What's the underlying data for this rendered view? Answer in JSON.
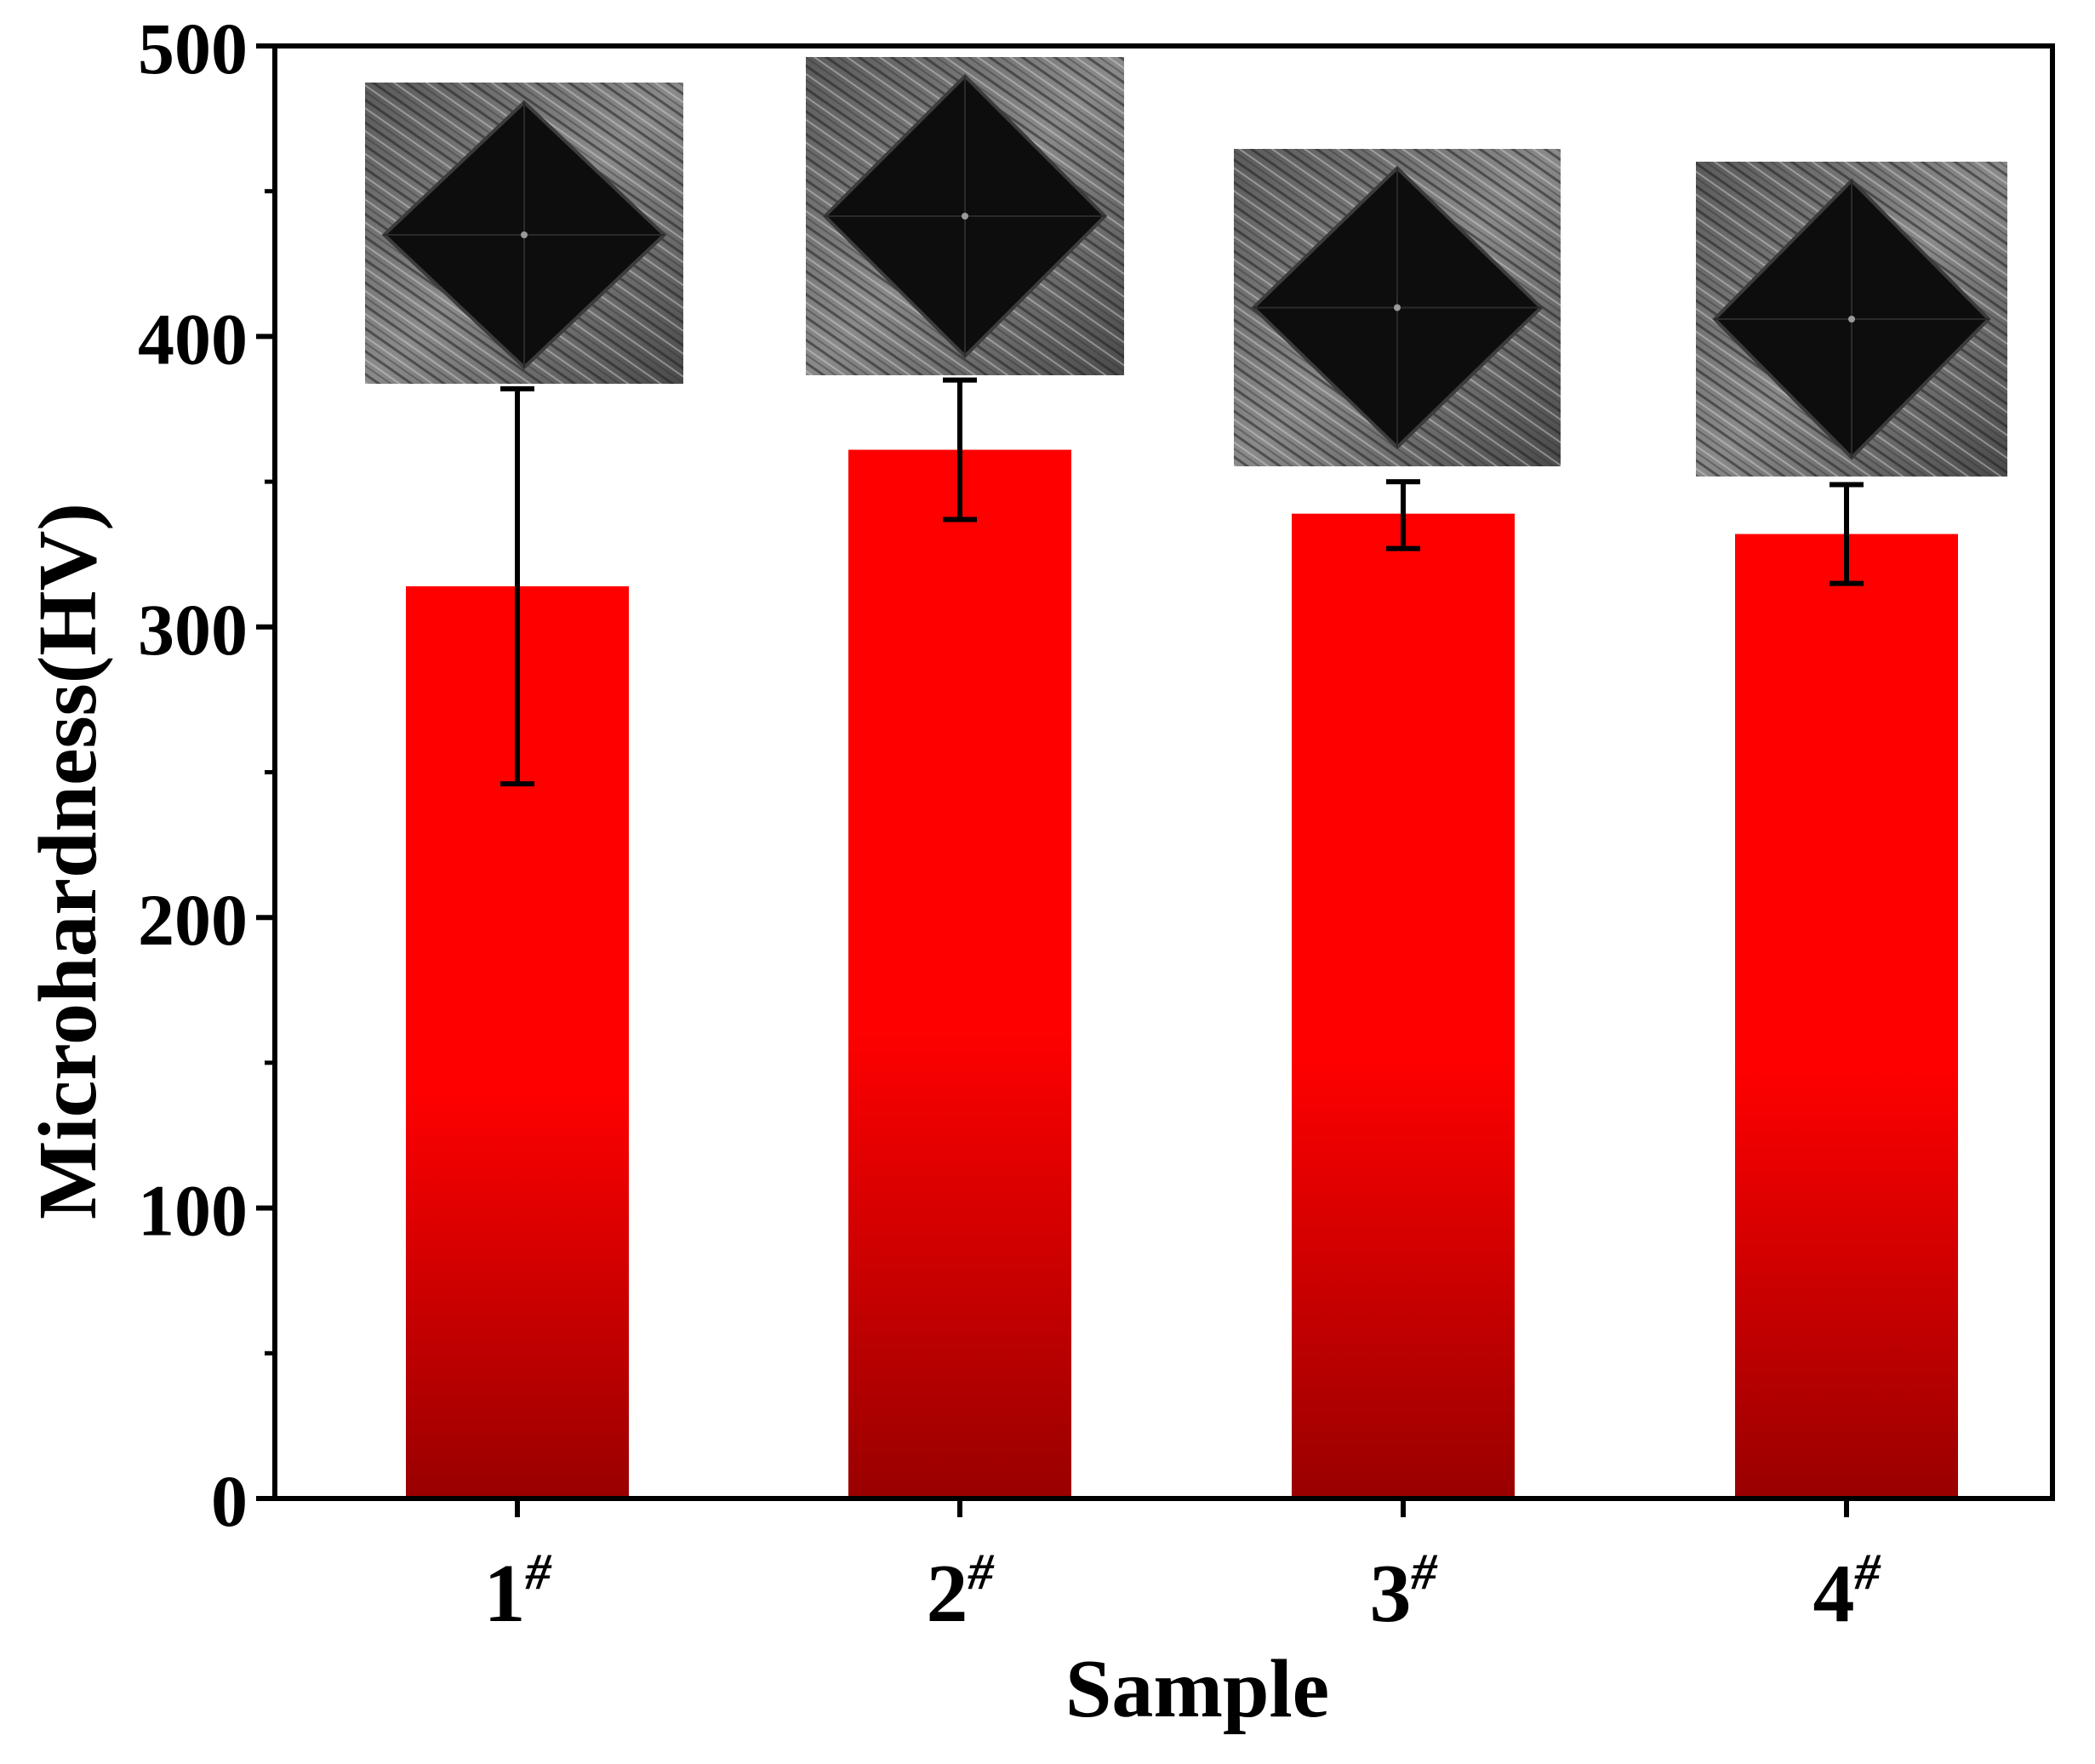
{
  "chart_data": {
    "type": "bar",
    "title": "",
    "xlabel": "Sample",
    "ylabel": "Microhardness(HV)",
    "categories": [
      {
        "label": "1",
        "superscript": "#"
      },
      {
        "label": "2",
        "superscript": "#"
      },
      {
        "label": "3",
        "superscript": "#"
      },
      {
        "label": "4",
        "superscript": "#"
      }
    ],
    "values": [
      314,
      361,
      339,
      332
    ],
    "error_low": [
      246,
      337,
      327,
      315
    ],
    "error_high": [
      382,
      385,
      350,
      349
    ],
    "ylim": [
      0,
      500
    ],
    "yticks": [
      "0",
      "100",
      "200",
      "300",
      "400",
      "500"
    ],
    "grid": false,
    "bar_color_top": "#ff0000",
    "bar_color_bottom": "#990000",
    "insets": [
      {
        "name": "indentation-micrograph-1"
      },
      {
        "name": "indentation-micrograph-2"
      },
      {
        "name": "indentation-micrograph-3"
      },
      {
        "name": "indentation-micrograph-4"
      }
    ]
  }
}
